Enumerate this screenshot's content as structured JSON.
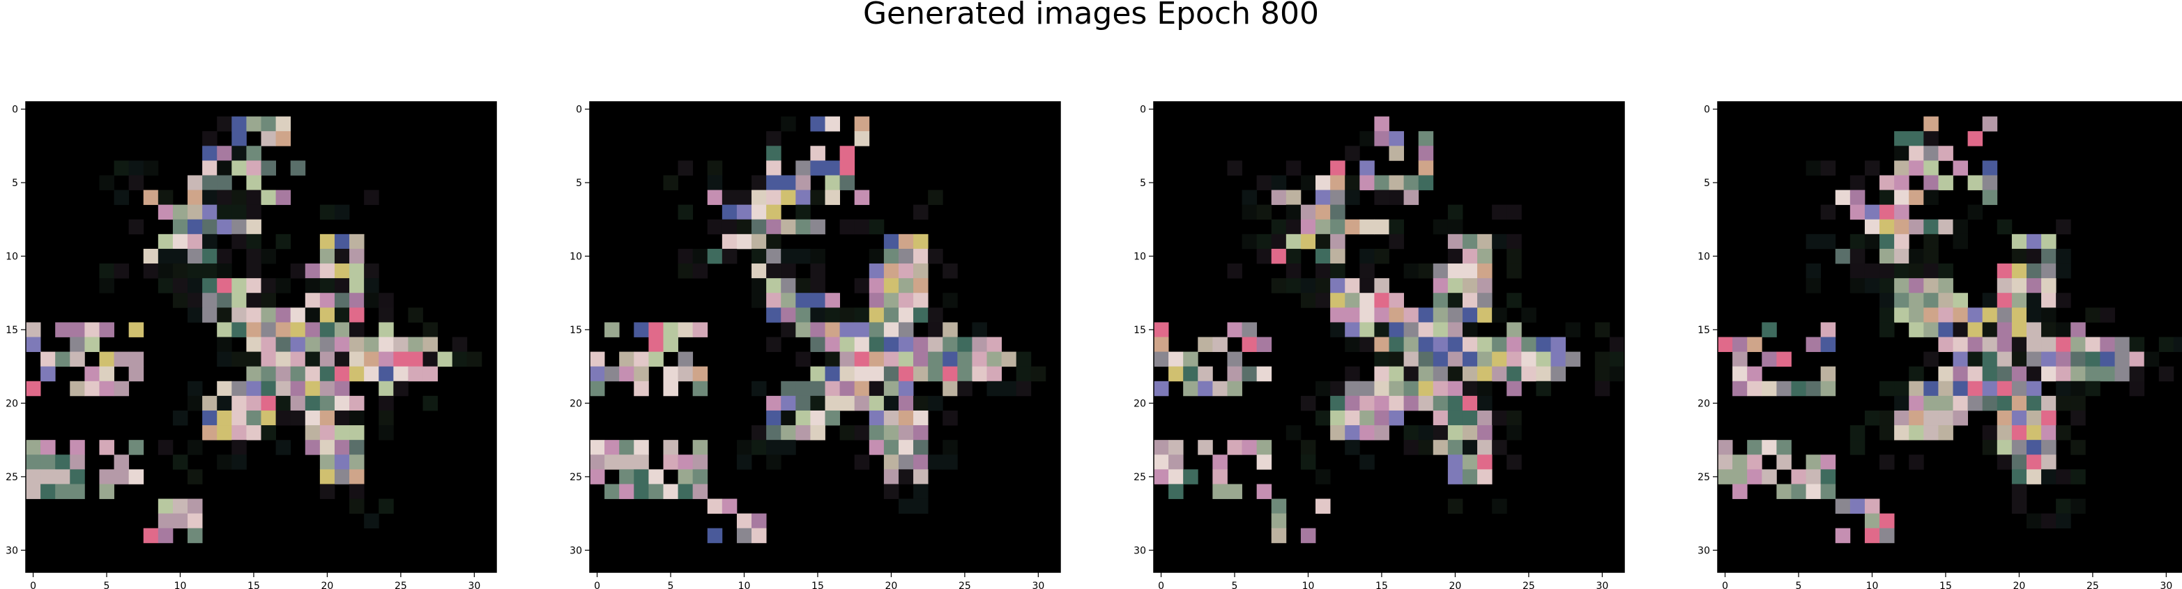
{
  "figure": {
    "title": "Generated images Epoch 800"
  },
  "chart_data": [
    {
      "type": "heatmap",
      "description_kind": "image",
      "image_size": 32,
      "background_color": "#000000",
      "xticks": [
        0,
        5,
        10,
        15,
        20,
        25,
        30
      ],
      "yticks": [
        0,
        5,
        10,
        15,
        20,
        25,
        30
      ],
      "xlim": [
        -0.5,
        31.5
      ],
      "ylim": [
        31.5,
        -0.5
      ],
      "palette_note": "generated 32x32 RGB sample; pixels approximated"
    },
    {
      "type": "heatmap",
      "description_kind": "image",
      "image_size": 32,
      "background_color": "#000000",
      "xticks": [
        0,
        5,
        10,
        15,
        20,
        25,
        30
      ],
      "yticks": [
        0,
        5,
        10,
        15,
        20,
        25,
        30
      ],
      "xlim": [
        -0.5,
        31.5
      ],
      "ylim": [
        31.5,
        -0.5
      ],
      "palette_note": "generated 32x32 RGB sample; pixels approximated"
    },
    {
      "type": "heatmap",
      "description_kind": "image",
      "image_size": 32,
      "background_color": "#000000",
      "xticks": [
        0,
        5,
        10,
        15,
        20,
        25,
        30
      ],
      "yticks": [
        0,
        5,
        10,
        15,
        20,
        25,
        30
      ],
      "xlim": [
        -0.5,
        31.5
      ],
      "ylim": [
        31.5,
        -0.5
      ],
      "palette_note": "generated 32x32 RGB sample; pixels approximated"
    },
    {
      "type": "heatmap",
      "description_kind": "image",
      "image_size": 32,
      "background_color": "#000000",
      "xticks": [
        0,
        5,
        10,
        15,
        20,
        25,
        30
      ],
      "yticks": [
        0,
        5,
        10,
        15,
        20,
        25,
        30
      ],
      "xlim": [
        -0.5,
        31.5
      ],
      "ylim": [
        31.5,
        -0.5
      ],
      "palette_note": "generated 32x32 RGB sample; pixels approximated"
    }
  ]
}
